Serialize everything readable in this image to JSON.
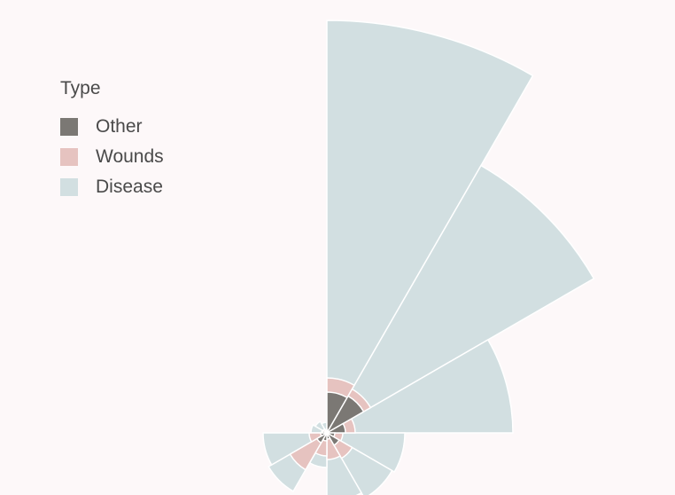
{
  "colors": {
    "Other": "#7b7874",
    "Wounds": "#e6c3c0",
    "Disease": "#d2dfe1",
    "stroke": "#ffffff",
    "background": "#fdf8f9"
  },
  "legend": {
    "title": "Type",
    "items": [
      {
        "label": "Other",
        "color": "#7b7874"
      },
      {
        "label": "Wounds",
        "color": "#e6c3c0"
      },
      {
        "label": "Disease",
        "color": "#d2dfe1"
      }
    ]
  },
  "chart_data": {
    "type": "polar-area",
    "layering": "overlapping",
    "angular_sectors": 12,
    "start_direction": "up",
    "series": [
      {
        "name": "Disease",
        "values": [
          465,
          348,
          210,
          88,
          85,
          78,
          39,
          76,
          72,
          18,
          15,
          12
        ]
      },
      {
        "name": "Wounds",
        "values": [
          62,
          57,
          32,
          18,
          33,
          30,
          26,
          48,
          20,
          6,
          5,
          3
        ]
      },
      {
        "name": "Other",
        "values": [
          46,
          48,
          21,
          9,
          16,
          7,
          9,
          13,
          7,
          5,
          3,
          4
        ]
      }
    ]
  }
}
